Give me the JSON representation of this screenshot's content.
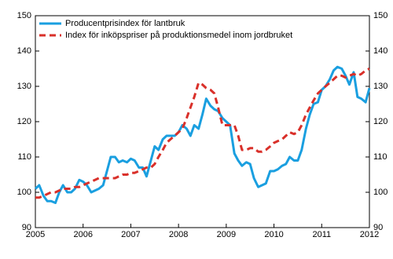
{
  "chart_data": {
    "type": "line",
    "x": [
      2005,
      2005.08,
      2005.17,
      2005.25,
      2005.33,
      2005.42,
      2005.5,
      2005.58,
      2005.67,
      2005.75,
      2005.83,
      2005.92,
      2006,
      2006.08,
      2006.17,
      2006.25,
      2006.33,
      2006.42,
      2006.5,
      2006.58,
      2006.67,
      2006.75,
      2006.83,
      2006.92,
      2007,
      2007.08,
      2007.17,
      2007.25,
      2007.33,
      2007.42,
      2007.5,
      2007.58,
      2007.67,
      2007.75,
      2007.83,
      2007.92,
      2008,
      2008.08,
      2008.17,
      2008.25,
      2008.33,
      2008.42,
      2008.5,
      2008.58,
      2008.67,
      2008.75,
      2008.83,
      2008.92,
      2009,
      2009.08,
      2009.17,
      2009.25,
      2009.33,
      2009.42,
      2009.5,
      2009.58,
      2009.67,
      2009.75,
      2009.83,
      2009.92,
      2010,
      2010.08,
      2010.17,
      2010.25,
      2010.33,
      2010.42,
      2010.5,
      2010.58,
      2010.67,
      2010.75,
      2010.83,
      2010.92,
      2011,
      2011.08,
      2011.17,
      2011.25,
      2011.33,
      2011.42,
      2011.5,
      2011.58,
      2011.67,
      2011.75,
      2011.83,
      2011.92,
      2012
    ],
    "series": [
      {
        "name": "Producentprisindex för lantbruk",
        "color": "#1a9fe0",
        "line_style": "solid",
        "values": [
          101,
          102,
          99,
          97.5,
          97.5,
          97,
          100,
          102,
          100,
          100,
          101,
          103.5,
          103,
          102,
          100,
          100.5,
          101,
          102,
          106,
          110,
          110,
          108.5,
          109,
          108.5,
          109.5,
          109,
          107,
          107,
          104.5,
          109,
          113,
          112,
          115,
          116,
          116,
          116,
          117,
          119,
          118,
          116,
          119,
          118,
          122,
          126.5,
          124.5,
          123.5,
          123,
          121,
          120,
          119,
          111,
          109,
          107.5,
          108.5,
          108,
          104,
          101.5,
          102,
          102.5,
          106,
          106,
          106.5,
          107.5,
          108,
          110,
          109,
          109,
          112,
          118,
          122,
          125,
          125.5,
          129,
          130,
          132,
          134.5,
          135.5,
          135,
          133,
          130.5,
          134,
          127,
          126.5,
          125.5,
          129.5
        ]
      },
      {
        "name": "Index för inköpspriser på produktionsmedel inom jordbruket",
        "color": "#d9302a",
        "line_style": "dashed",
        "values": [
          98.5,
          98.5,
          99,
          99.5,
          100,
          100,
          100.5,
          101,
          101,
          101,
          101.5,
          101.5,
          102,
          102.5,
          103,
          103.5,
          104,
          104,
          104,
          104,
          104,
          104.5,
          105,
          105,
          105.5,
          105.5,
          106,
          106.5,
          107,
          107,
          108,
          110,
          112,
          114,
          115,
          116,
          117,
          118,
          121,
          124,
          127,
          131,
          130.5,
          129.5,
          129,
          128,
          124,
          119,
          119,
          119,
          119,
          116,
          112,
          112,
          112.5,
          112.5,
          111.5,
          111.5,
          112,
          113,
          114,
          114.5,
          115,
          116,
          117,
          116.5,
          117,
          119,
          122,
          124,
          126,
          128,
          129,
          130,
          131,
          132,
          133,
          133,
          132.5,
          133,
          133.5,
          133,
          133.5,
          134.5,
          135
        ]
      }
    ],
    "xlim": [
      2005,
      2012
    ],
    "xticks": [
      2005,
      2006,
      2007,
      2008,
      2009,
      2010,
      2011,
      2012
    ],
    "ylim": [
      90,
      150
    ],
    "yticks": [
      90,
      100,
      110,
      120,
      130,
      140,
      150
    ],
    "y2lim": [
      90,
      150
    ],
    "y2ticks": [
      90,
      100,
      110,
      120,
      130,
      140,
      150
    ],
    "legend": "top-left"
  }
}
